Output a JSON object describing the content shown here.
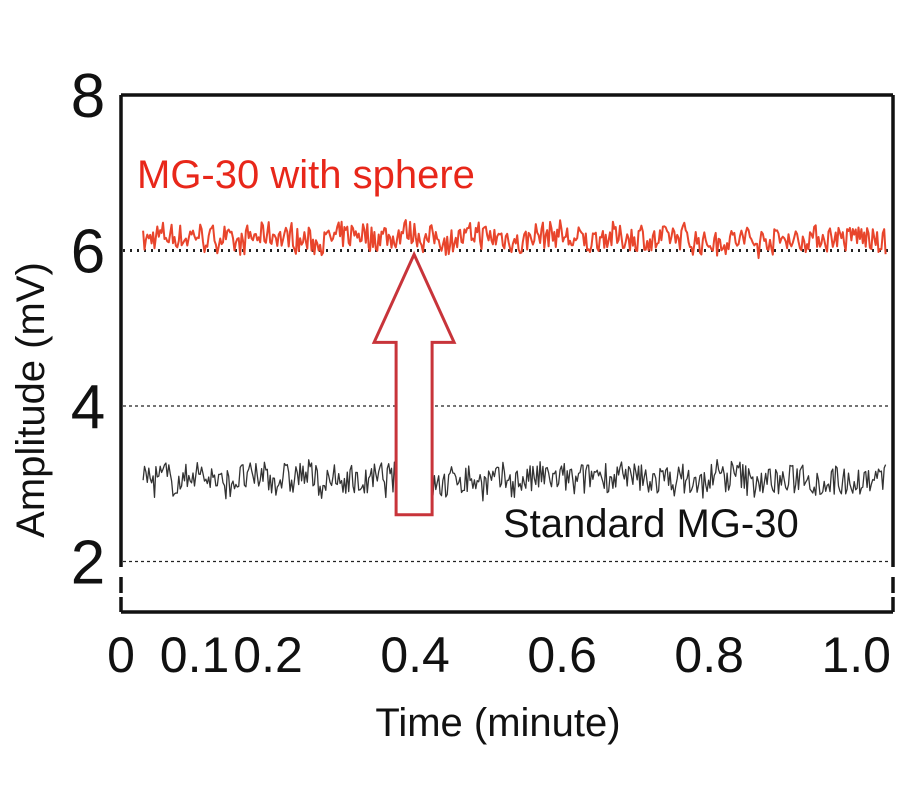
{
  "chart_data": {
    "type": "line",
    "title": "",
    "xlabel": "Time (minute)",
    "ylabel": "Amplitude (mV)",
    "xlim": [
      0,
      1.05
    ],
    "ylim": [
      1.35,
      8.0
    ],
    "x_ticks": [
      "0",
      "0.1",
      "0.2",
      "0.4",
      "0.6",
      "0.8",
      "1.0"
    ],
    "x_tick_values": [
      0,
      0.1,
      0.2,
      0.4,
      0.6,
      0.8,
      1.0
    ],
    "y_ticks": [
      "2",
      "4",
      "6",
      "8"
    ],
    "y_tick_values": [
      2,
      4,
      6,
      8
    ],
    "reference_lines": [
      {
        "y": 2,
        "style": "dotted"
      },
      {
        "y": 4,
        "style": "dotted"
      },
      {
        "y": 6,
        "style": "dotted"
      }
    ],
    "series": [
      {
        "name": "MG-30 with sphere",
        "mean": 6.15,
        "noise_amplitude": 0.15,
        "color": "#e8452c"
      },
      {
        "name": "Standard MG-30",
        "mean": 3.05,
        "noise_amplitude": 0.18,
        "color": "#333333"
      }
    ],
    "annotations": [
      {
        "text": "MG-30 with sphere",
        "color": "#e8271a"
      },
      {
        "text": "Standard MG-30",
        "color": "#111111"
      }
    ],
    "arrow": {
      "from_y": 2.6,
      "to_y": 5.95,
      "x": 0.4,
      "color": "#c8343a",
      "direction": "up"
    }
  }
}
